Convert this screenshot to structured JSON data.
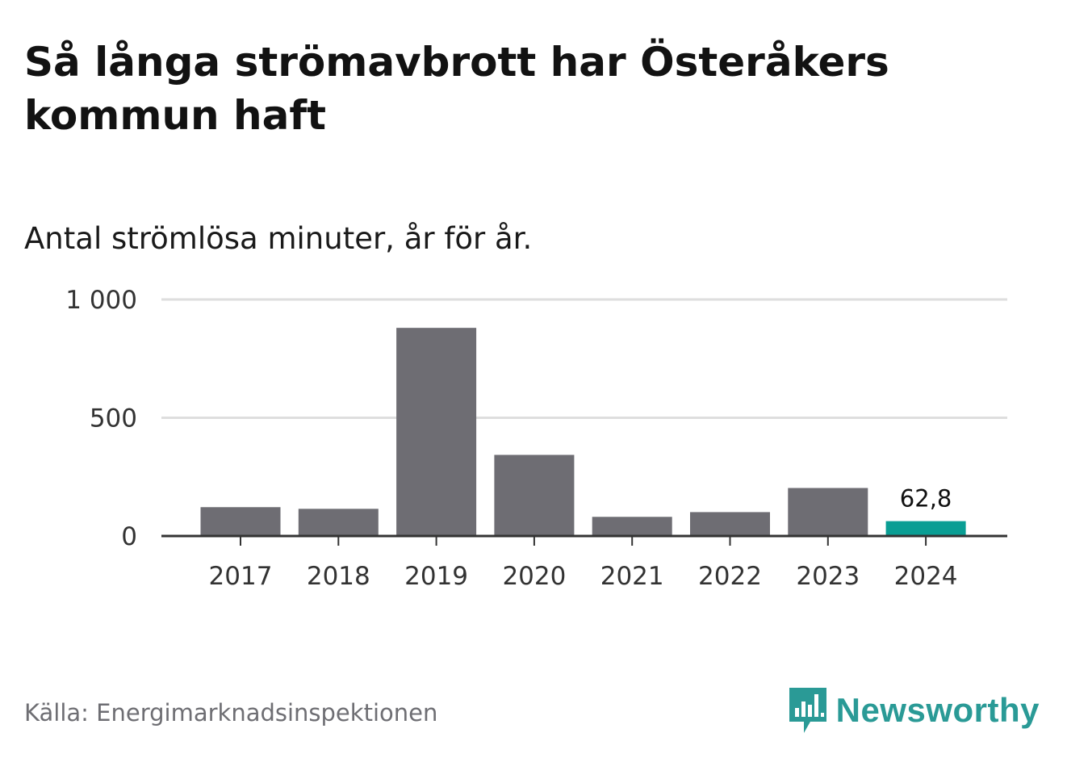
{
  "title": "Så långa strömavbrott har Österåkers kommun haft",
  "subtitle": "Antal strömlösa minuter, år för år.",
  "source": "Källa: Energimarknadsinspektionen",
  "brand": {
    "name": "Newsworthy",
    "icon": "newsworthy-logo-icon",
    "color": "#2a9a96"
  },
  "colors": {
    "bar": "#6e6d73",
    "highlight": "#0a9e94",
    "grid": "#dedede",
    "axis": "#333333",
    "tick_text": "#333333"
  },
  "chart_data": {
    "type": "bar",
    "title": "Så långa strömavbrott har Österåkers kommun haft",
    "subtitle": "Antal strömlösa minuter, år för år.",
    "xlabel": "",
    "ylabel": "",
    "ylim": [
      0,
      1000
    ],
    "yticks": [
      0,
      500,
      1000
    ],
    "ytick_labels": [
      "0",
      "500",
      "1 000"
    ],
    "grid": true,
    "categories": [
      "2017",
      "2018",
      "2019",
      "2020",
      "2021",
      "2022",
      "2023",
      "2024"
    ],
    "values": [
      122,
      115,
      880,
      343,
      81,
      101,
      203,
      62.8
    ],
    "highlight_index": 7,
    "data_labels": [
      {
        "index": 7,
        "text": "62,8"
      }
    ]
  }
}
